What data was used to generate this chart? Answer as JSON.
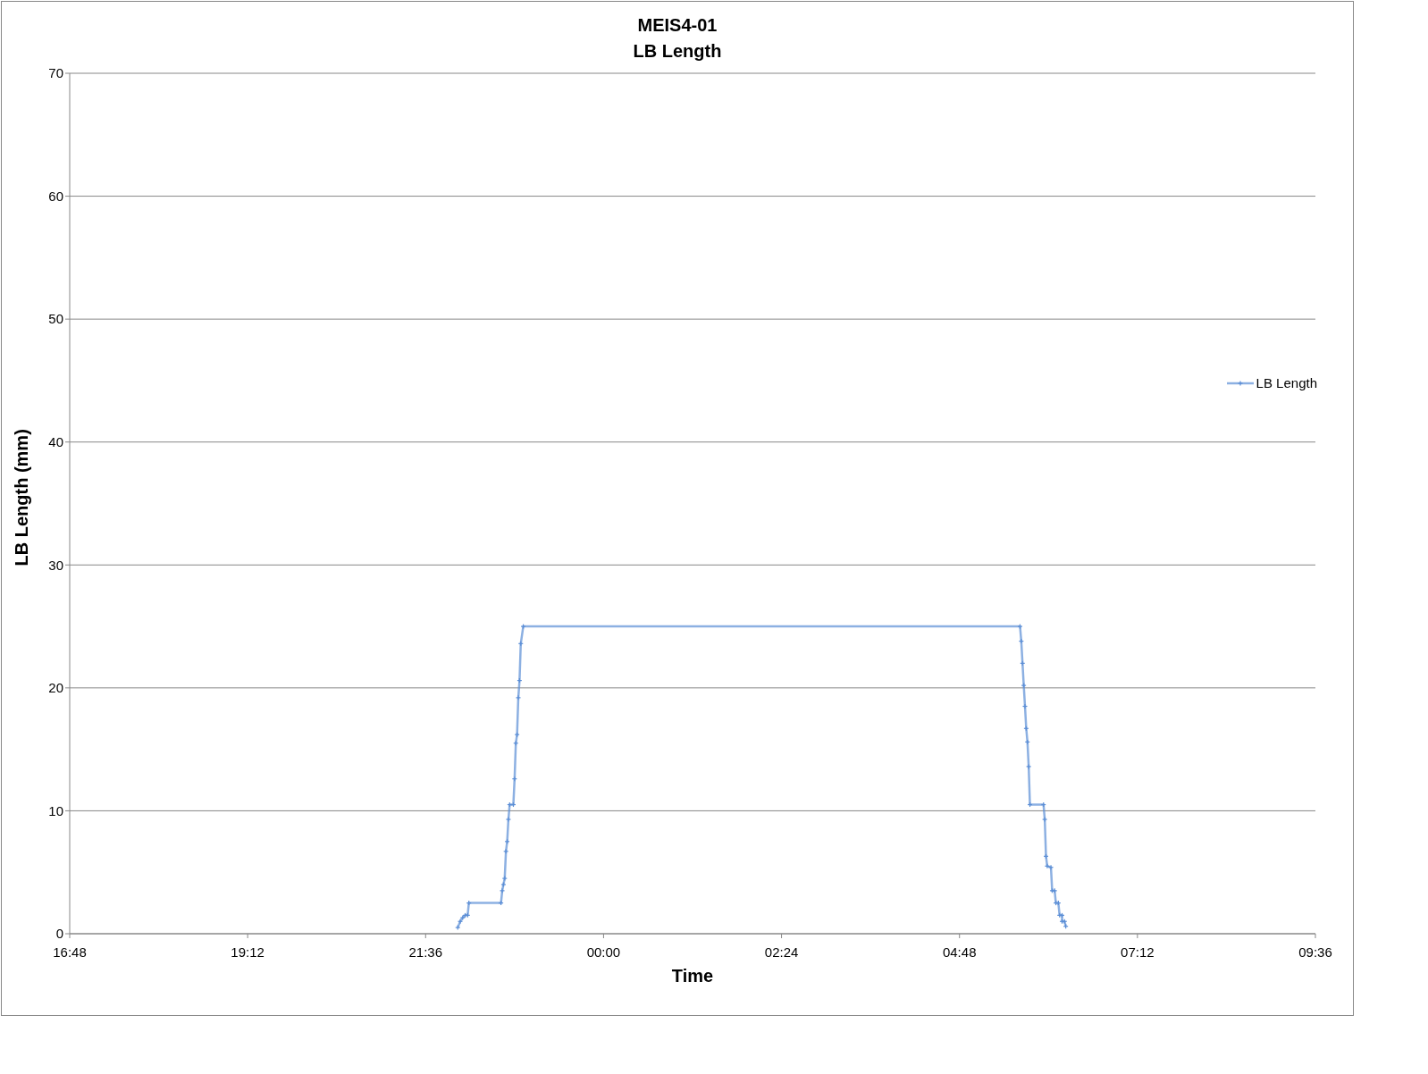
{
  "chart_data": {
    "type": "line",
    "title": "MEIS4-01",
    "subtitle": "LB Length",
    "xlabel": "Time",
    "ylabel": "LB Length (mm)",
    "x": [
      "2000-01-01T22:02",
      "2000-01-01T22:04",
      "2000-01-01T22:06",
      "2000-01-01T22:08",
      "2000-01-01T22:10",
      "2000-01-01T22:11",
      "2000-01-01T22:37",
      "2000-01-01T22:38",
      "2000-01-01T22:39",
      "2000-01-01T22:40",
      "2000-01-01T22:41",
      "2000-01-01T22:42",
      "2000-01-01T22:43",
      "2000-01-01T22:44",
      "2000-01-01T22:47",
      "2000-01-01T22:48",
      "2000-01-01T22:49",
      "2000-01-01T22:50",
      "2000-01-01T22:51",
      "2000-01-01T22:52",
      "2000-01-01T22:53",
      "2000-01-01T22:55",
      "2000-01-02T05:37",
      "2000-01-02T05:38",
      "2000-01-02T05:39",
      "2000-01-02T05:40",
      "2000-01-02T05:41",
      "2000-01-02T05:42",
      "2000-01-02T05:43",
      "2000-01-02T05:44",
      "2000-01-02T05:45",
      "2000-01-02T05:56",
      "2000-01-02T05:57",
      "2000-01-02T05:58",
      "2000-01-02T05:59",
      "2000-01-02T06:02",
      "2000-01-02T06:03",
      "2000-01-02T06:05",
      "2000-01-02T06:06",
      "2000-01-02T06:08",
      "2000-01-02T06:09",
      "2000-01-02T06:11",
      "2000-01-02T06:11",
      "2000-01-02T06:13",
      "2000-01-02T06:14"
    ],
    "series": [
      {
        "name": "LB Length",
        "color": "#5b8ed6",
        "values": [
          0.5,
          1.0,
          1.3,
          1.5,
          1.5,
          2.5,
          2.5,
          3.5,
          4.0,
          4.5,
          6.7,
          7.5,
          9.3,
          10.5,
          10.5,
          12.6,
          15.5,
          16.2,
          19.2,
          20.6,
          23.6,
          25.0,
          25.0,
          23.8,
          22.0,
          20.2,
          18.5,
          16.7,
          15.6,
          13.6,
          10.5,
          10.5,
          9.3,
          6.3,
          5.5,
          5.4,
          3.5,
          3.5,
          2.5,
          2.5,
          1.5,
          1.5,
          1.0,
          1.0,
          0.6
        ]
      }
    ],
    "xlim": [
      "2000-01-01T16:48",
      "2000-01-02T09:36"
    ],
    "xticks": [
      {
        "value": "2000-01-01T16:48",
        "label": "16:48"
      },
      {
        "value": "2000-01-01T19:12",
        "label": "19:12"
      },
      {
        "value": "2000-01-01T21:36",
        "label": "21:36"
      },
      {
        "value": "2000-01-02T00:00",
        "label": "00:00"
      },
      {
        "value": "2000-01-02T02:24",
        "label": "02:24"
      },
      {
        "value": "2000-01-02T04:48",
        "label": "04:48"
      },
      {
        "value": "2000-01-02T07:12",
        "label": "07:12"
      },
      {
        "value": "2000-01-02T09:36",
        "label": "09:36"
      }
    ],
    "ylim": [
      0,
      70
    ],
    "yticks": [
      0,
      10,
      20,
      30,
      40,
      50,
      60,
      70
    ],
    "grid": "y",
    "legend": "right",
    "marker": "cross",
    "line_style": "solid"
  }
}
